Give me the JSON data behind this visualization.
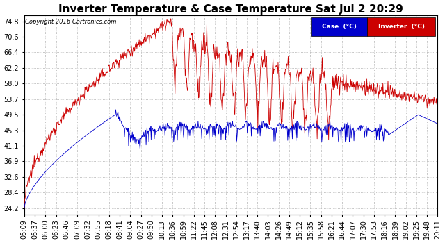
{
  "title": "Inverter Temperature & Case Temperature Sat Jul 2 20:29",
  "copyright": "Copyright 2016 Cartronics.com",
  "yticks": [
    24.2,
    28.4,
    32.6,
    36.9,
    41.1,
    45.3,
    49.5,
    53.7,
    58.0,
    62.2,
    66.4,
    70.6,
    74.8
  ],
  "ylim": [
    22.5,
    76.5
  ],
  "background_color": "#ffffff",
  "grid_color": "#b0b0b0",
  "title_fontsize": 11,
  "tick_fontsize": 7,
  "time_labels": [
    "05:09",
    "05:37",
    "06:00",
    "06:23",
    "06:46",
    "07:09",
    "07:32",
    "07:55",
    "08:18",
    "08:41",
    "09:04",
    "09:27",
    "09:50",
    "10:13",
    "10:36",
    "10:59",
    "11:22",
    "11:45",
    "12:08",
    "12:31",
    "12:54",
    "13:17",
    "13:40",
    "14:03",
    "14:26",
    "14:49",
    "15:12",
    "15:35",
    "15:58",
    "16:21",
    "16:44",
    "17:07",
    "17:30",
    "17:53",
    "18:16",
    "18:39",
    "19:02",
    "19:25",
    "19:48",
    "20:11"
  ]
}
